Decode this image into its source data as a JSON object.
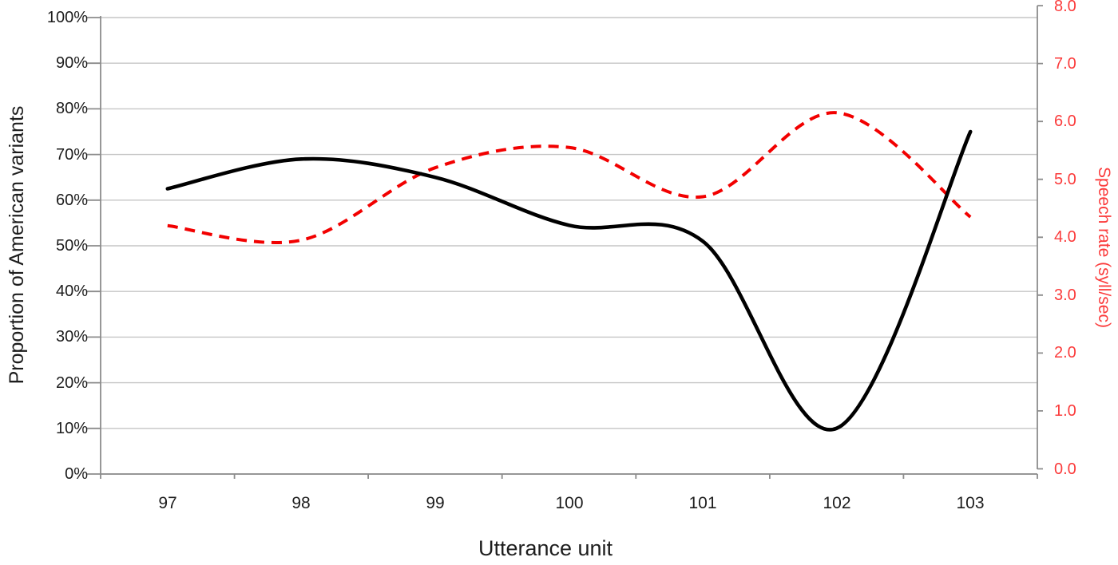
{
  "chart_data": {
    "type": "line",
    "title": "",
    "x": [
      97,
      98,
      99,
      100,
      101,
      102,
      103
    ],
    "xlabel": "Utterance unit",
    "series": [
      {
        "name": "Proportion of American variants",
        "axis": "left",
        "color": "#000000",
        "line_style": "solid",
        "smoothed": true,
        "values": [
          62.5,
          69,
          65,
          54.5,
          51,
          10,
          75
        ],
        "unit": "%"
      },
      {
        "name": "Speech rate",
        "axis": "right",
        "color": "#f20000",
        "line_style": "dashed",
        "smoothed": true,
        "values": [
          4.2,
          3.95,
          5.2,
          5.55,
          4.7,
          6.15,
          4.35
        ],
        "unit": "syll/sec"
      }
    ],
    "left_axis": {
      "label": "Proportion of American variants",
      "min": 0,
      "max": 100,
      "tick_step": 10,
      "format": "percent"
    },
    "right_axis": {
      "label": "Speech rate (syll/sec)",
      "min": 0.0,
      "max": 8.0,
      "tick_step": 1.0
    },
    "grid": "horizontal",
    "legend": "none"
  },
  "axes": {
    "left": {
      "ticks": [
        "100%",
        "90%",
        "80%",
        "70%",
        "60%",
        "50%",
        "40%",
        "30%",
        "20%",
        "10%",
        "0%"
      ]
    },
    "right": {
      "ticks": [
        "8.0",
        "7.0",
        "6.0",
        "5.0",
        "4.0",
        "3.0",
        "2.0",
        "1.0",
        "0.0"
      ]
    },
    "x": {
      "ticks": [
        "97",
        "98",
        "99",
        "100",
        "101",
        "102",
        "103"
      ]
    }
  },
  "colors": {
    "background": "#ffffff",
    "gridline": "#c6c6c6",
    "axis_line": "#8c8c8c",
    "black_series": "#000000",
    "red_series": "#f20000",
    "red_text": "#fb3b3b",
    "tick_text": "#1d1d1d"
  }
}
